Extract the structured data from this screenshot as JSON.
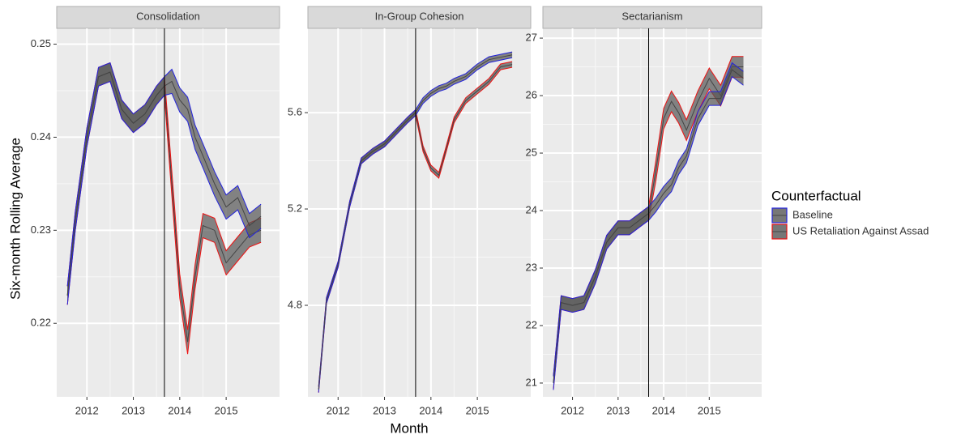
{
  "y_label": "Six-month Rolling Average",
  "x_label": "Month",
  "legend_title": "Counterfactual",
  "chart_data": [
    {
      "type": "line",
      "title": "Consolidation",
      "x": [
        2011.58,
        2011.75,
        2012.0,
        2012.25,
        2012.5,
        2012.75,
        2013.0,
        2013.25,
        2013.5,
        2013.67,
        2013.83,
        2014.0,
        2014.17,
        2014.33,
        2014.5,
        2014.75,
        2015.0,
        2015.25,
        2015.5,
        2015.75
      ],
      "xlim": [
        2011.35,
        2016.15
      ],
      "xticks": [
        2012,
        2013,
        2014,
        2015
      ],
      "ylim": [
        0.2121,
        0.2517
      ],
      "yticks": [
        0.22,
        0.23,
        0.24,
        0.25
      ],
      "vline": 2013.67,
      "grid": true,
      "series": [
        {
          "name": "Baseline",
          "color": "#2222dd",
          "values": [
            0.223,
            0.231,
            0.24,
            0.2465,
            0.247,
            0.243,
            0.2415,
            0.2425,
            0.2445,
            0.2455,
            0.246,
            0.244,
            0.243,
            0.24,
            0.238,
            0.235,
            0.2325,
            0.2335,
            0.2305,
            0.2315
          ],
          "lower": [
            0.222,
            0.23,
            0.239,
            0.2455,
            0.246,
            0.242,
            0.2405,
            0.2415,
            0.2435,
            0.2445,
            0.2447,
            0.2427,
            0.2417,
            0.2387,
            0.2367,
            0.2337,
            0.2312,
            0.2322,
            0.2292,
            0.2302
          ],
          "upper": [
            0.224,
            0.232,
            0.241,
            0.2475,
            0.248,
            0.244,
            0.2425,
            0.2435,
            0.2455,
            0.2465,
            0.2473,
            0.2453,
            0.2443,
            0.2413,
            0.2393,
            0.2363,
            0.2338,
            0.2348,
            0.2318,
            0.2328
          ]
        },
        {
          "name": "US Retaliation Against Assad",
          "color": "#ee1111",
          "values": [
            0.223,
            0.231,
            0.24,
            0.2465,
            0.247,
            0.243,
            0.2415,
            0.2425,
            0.2445,
            0.2455,
            0.235,
            0.224,
            0.218,
            0.225,
            0.2305,
            0.23,
            0.2265,
            0.228,
            0.2295,
            0.23
          ],
          "lower": [
            0.222,
            0.23,
            0.239,
            0.2455,
            0.246,
            0.242,
            0.2405,
            0.2415,
            0.2435,
            0.2445,
            0.2337,
            0.2227,
            0.2167,
            0.2237,
            0.2292,
            0.2287,
            0.2252,
            0.2267,
            0.2282,
            0.2287
          ],
          "upper": [
            0.224,
            0.232,
            0.241,
            0.2475,
            0.248,
            0.244,
            0.2425,
            0.2435,
            0.2455,
            0.2465,
            0.2363,
            0.2253,
            0.2193,
            0.2263,
            0.2318,
            0.2313,
            0.2278,
            0.2293,
            0.2308,
            0.2313
          ]
        }
      ]
    },
    {
      "type": "line",
      "title": "In-Group Cohesion",
      "x": [
        2011.58,
        2011.75,
        2012.0,
        2012.25,
        2012.5,
        2012.75,
        2013.0,
        2013.25,
        2013.5,
        2013.67,
        2013.83,
        2014.0,
        2014.17,
        2014.33,
        2014.5,
        2014.75,
        2015.0,
        2015.25,
        2015.5,
        2015.75
      ],
      "xlim": [
        2011.35,
        2016.15
      ],
      "xticks": [
        2012,
        2013,
        2014,
        2015
      ],
      "ylim": [
        4.42,
        5.95
      ],
      "yticks": [
        4.8,
        5.2,
        5.6
      ],
      "vline": 2013.67,
      "grid": true,
      "series": [
        {
          "name": "Baseline",
          "color": "#2222dd",
          "values": [
            4.45,
            4.82,
            4.97,
            5.22,
            5.4,
            5.44,
            5.47,
            5.52,
            5.57,
            5.6,
            5.65,
            5.68,
            5.7,
            5.71,
            5.73,
            5.75,
            5.79,
            5.82,
            5.83,
            5.84
          ],
          "lower": [
            4.438,
            4.808,
            4.958,
            5.208,
            5.388,
            5.428,
            5.458,
            5.508,
            5.558,
            5.588,
            5.638,
            5.668,
            5.688,
            5.698,
            5.718,
            5.738,
            5.778,
            5.808,
            5.818,
            5.828
          ],
          "upper": [
            4.462,
            4.832,
            4.982,
            5.232,
            5.412,
            5.452,
            5.482,
            5.532,
            5.582,
            5.612,
            5.662,
            5.692,
            5.712,
            5.722,
            5.742,
            5.762,
            5.802,
            5.832,
            5.842,
            5.852
          ]
        },
        {
          "name": "US Retaliation Against Assad",
          "color": "#ee1111",
          "values": [
            4.45,
            4.82,
            4.97,
            5.22,
            5.4,
            5.44,
            5.47,
            5.52,
            5.57,
            5.6,
            5.45,
            5.37,
            5.34,
            5.45,
            5.57,
            5.65,
            5.69,
            5.73,
            5.79,
            5.8
          ],
          "lower": [
            4.438,
            4.808,
            4.958,
            5.208,
            5.388,
            5.428,
            5.458,
            5.508,
            5.558,
            5.588,
            5.438,
            5.358,
            5.328,
            5.438,
            5.558,
            5.638,
            5.678,
            5.718,
            5.778,
            5.788
          ],
          "upper": [
            4.462,
            4.832,
            4.982,
            5.232,
            5.412,
            5.452,
            5.482,
            5.532,
            5.582,
            5.612,
            5.462,
            5.382,
            5.352,
            5.462,
            5.582,
            5.662,
            5.702,
            5.742,
            5.802,
            5.812
          ]
        }
      ]
    },
    {
      "type": "line",
      "title": "Sectarianism",
      "x": [
        2011.58,
        2011.75,
        2012.0,
        2012.25,
        2012.5,
        2012.75,
        2013.0,
        2013.25,
        2013.5,
        2013.67,
        2013.83,
        2014.0,
        2014.17,
        2014.33,
        2014.5,
        2014.75,
        2015.0,
        2015.25,
        2015.5,
        2015.75
      ],
      "xlim": [
        2011.35,
        2016.15
      ],
      "xticks": [
        2012,
        2013,
        2014,
        2015
      ],
      "ylim": [
        20.76,
        27.17
      ],
      "yticks": [
        21,
        22,
        23,
        24,
        25,
        26,
        27
      ],
      "vline": 2013.67,
      "grid": true,
      "series": [
        {
          "name": "Baseline",
          "color": "#2222dd",
          "values": [
            21.0,
            22.4,
            22.35,
            22.4,
            22.85,
            23.45,
            23.7,
            23.7,
            23.85,
            23.95,
            24.1,
            24.3,
            24.45,
            24.75,
            24.95,
            25.6,
            25.95,
            25.95,
            26.45,
            26.3
          ],
          "lower": [
            20.88,
            22.28,
            22.23,
            22.28,
            22.73,
            23.33,
            23.58,
            23.58,
            23.73,
            23.83,
            23.98,
            24.18,
            24.33,
            24.63,
            24.83,
            25.48,
            25.83,
            25.83,
            26.33,
            26.18
          ],
          "upper": [
            21.12,
            22.52,
            22.47,
            22.52,
            22.97,
            23.57,
            23.82,
            23.82,
            23.97,
            24.07,
            24.22,
            24.42,
            24.57,
            24.87,
            25.07,
            25.72,
            26.07,
            26.07,
            26.57,
            26.42
          ]
        },
        {
          "name": "US Retaliation Against Assad",
          "color": "#ee1111",
          "values": [
            21.0,
            22.4,
            22.35,
            22.4,
            22.85,
            23.45,
            23.7,
            23.7,
            23.85,
            23.95,
            24.7,
            25.6,
            25.9,
            25.7,
            25.4,
            25.9,
            26.3,
            26.0,
            26.5,
            26.5
          ],
          "lower": [
            20.88,
            22.28,
            22.23,
            22.28,
            22.73,
            23.33,
            23.58,
            23.58,
            23.73,
            23.83,
            24.52,
            25.42,
            25.72,
            25.52,
            25.22,
            25.72,
            26.12,
            25.82,
            26.32,
            26.32
          ],
          "upper": [
            21.12,
            22.52,
            22.47,
            22.52,
            22.97,
            23.57,
            23.82,
            23.82,
            23.97,
            24.07,
            24.88,
            25.78,
            26.08,
            25.88,
            25.58,
            26.08,
            26.48,
            26.18,
            26.68,
            26.68
          ]
        }
      ]
    }
  ]
}
